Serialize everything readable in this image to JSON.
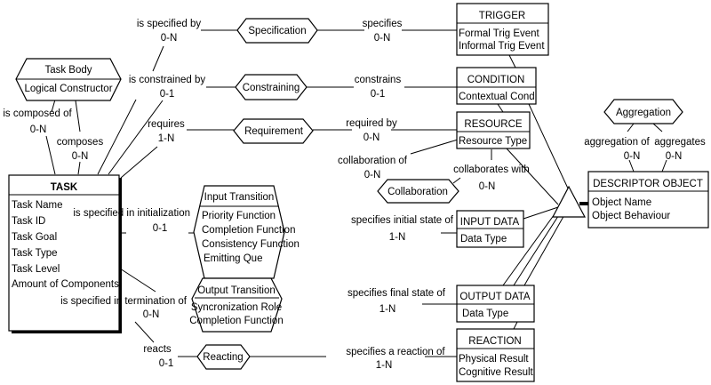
{
  "entities": {
    "task": {
      "title": "TASK",
      "attributes": [
        "Task Name",
        "Task ID",
        "Task Goal",
        "Task Type",
        "Task Level",
        "Amount of Components"
      ]
    },
    "trigger": {
      "title": "TRIGGER",
      "attributes": [
        "Formal Trig Event",
        "Informal Trig Event"
      ]
    },
    "condition": {
      "title": "CONDITION",
      "attributes": [
        "Contextual Cond"
      ]
    },
    "resource": {
      "title": "RESOURCE",
      "attributes": [
        "Resource Type"
      ]
    },
    "input_data": {
      "title": "INPUT DATA",
      "attributes": [
        "Data Type"
      ]
    },
    "output_data": {
      "title": "OUTPUT DATA",
      "attributes": [
        "Data Type"
      ]
    },
    "reaction": {
      "title": "REACTION",
      "attributes": [
        "Physical Result",
        "Cognitive Result"
      ]
    },
    "descriptor_object": {
      "title": "DESCRIPTOR OBJECT",
      "attributes": [
        "Object Name",
        "Object Behaviour"
      ]
    }
  },
  "relationships": {
    "specification": "Specification",
    "constraining": "Constraining",
    "requirement": "Requirement",
    "collaboration": "Collaboration",
    "aggregation": "Aggregation",
    "reacting": "Reacting",
    "task_body": {
      "title": "Task Body",
      "attributes": [
        "Logical Constructor"
      ]
    },
    "input_transition": {
      "title": "Input Transition",
      "attributes": [
        "Priority Function",
        "Completion Function",
        "Consistency Function",
        "Emitting Que"
      ]
    },
    "output_transition": {
      "title": "Output Transition",
      "attributes": [
        "Syncronization Role",
        "Completion Function"
      ]
    }
  },
  "roles": {
    "is_specified_by": {
      "label": "is specified by",
      "card": "0-N"
    },
    "specifies": {
      "label": "specifies",
      "card": "0-N"
    },
    "is_constrained_by": {
      "label": "is constrained by",
      "card": "0-1"
    },
    "constrains": {
      "label": "constrains",
      "card": "0-1"
    },
    "requires": {
      "label": "requires",
      "card": "1-N"
    },
    "required_by": {
      "label": "required by",
      "card": "0-N"
    },
    "collaboration_of": {
      "label": "collaboration of",
      "card": "0-N"
    },
    "collaborates_with": {
      "label": "collaborates with",
      "card": "0-N"
    },
    "is_composed_of": {
      "label": "is composed of",
      "card": "0-N"
    },
    "composes": {
      "label": "composes",
      "card": "0-N"
    },
    "is_specified_in_initialization": {
      "label": "is specified in initialization",
      "card": "0-1"
    },
    "specifies_initial_state_of": {
      "label": "specifies initial state of",
      "card": "1-N"
    },
    "is_specified_in_termination_of": {
      "label": "is specified in termination of",
      "card": "0-N"
    },
    "specifies_final_state_of": {
      "label": "specifies final state of",
      "card": "1-N"
    },
    "reacts": {
      "label": "reacts",
      "card": "0-1"
    },
    "specifies_a_reaction_of": {
      "label": "specifies a reaction of",
      "card": "1-N"
    },
    "aggregation_of": {
      "label": "aggregation of",
      "card": "0-N"
    },
    "aggregates": {
      "label": "aggregates",
      "card": "0-N"
    }
  }
}
